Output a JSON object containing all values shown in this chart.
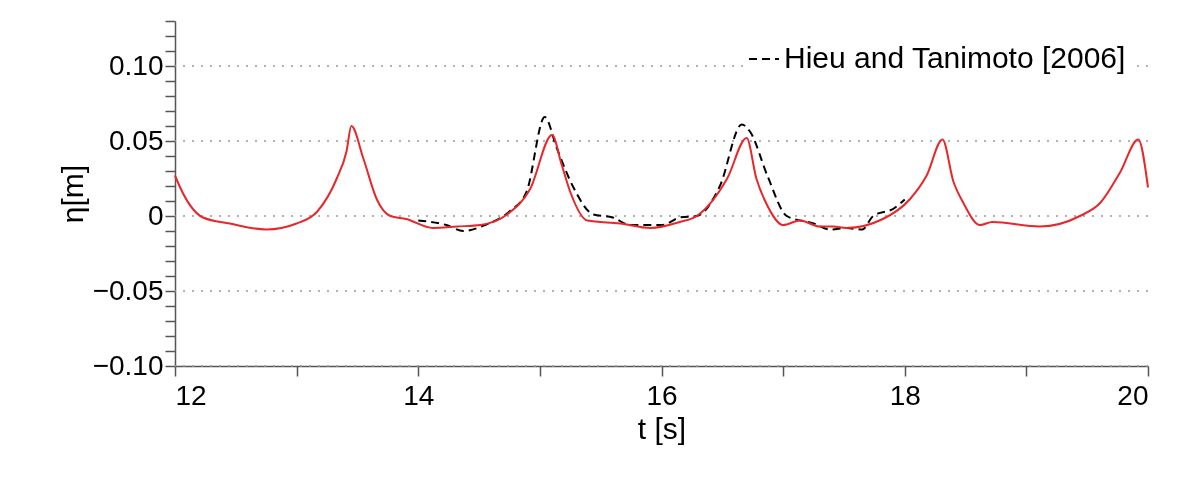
{
  "chart_data": {
    "type": "line",
    "xlabel": "t [s]",
    "ylabel": "η[m]",
    "xlim": [
      12,
      20
    ],
    "ylim": [
      -0.1,
      0.13
    ],
    "xticks": [
      12,
      {
        "value": 13,
        "label": null
      },
      14,
      {
        "value": 15,
        "label": null
      },
      16,
      {
        "value": 17,
        "label": null
      },
      18,
      {
        "value": 19,
        "label": null
      },
      20
    ],
    "yticks": [
      {
        "value": -0.1,
        "label": "−0.10"
      },
      {
        "value": -0.09,
        "label": null
      },
      {
        "value": -0.08,
        "label": null
      },
      {
        "value": -0.07,
        "label": null
      },
      {
        "value": -0.06,
        "label": null
      },
      {
        "value": -0.05,
        "label": "−0.05"
      },
      {
        "value": -0.04,
        "label": null
      },
      {
        "value": -0.03,
        "label": null
      },
      {
        "value": -0.02,
        "label": null
      },
      {
        "value": -0.01,
        "label": null
      },
      0,
      {
        "value": 0.01,
        "label": null
      },
      {
        "value": 0.02,
        "label": null
      },
      {
        "value": 0.03,
        "label": null
      },
      {
        "value": 0.04,
        "label": null
      },
      {
        "value": 0.05,
        "label": "0.05"
      },
      {
        "value": 0.06,
        "label": null
      },
      {
        "value": 0.07,
        "label": null
      },
      {
        "value": 0.08,
        "label": null
      },
      {
        "value": 0.09,
        "label": null
      },
      {
        "value": 0.1,
        "label": "0.10"
      },
      {
        "value": 0.11,
        "label": null
      },
      {
        "value": 0.12,
        "label": null
      },
      {
        "value": 0.13,
        "label": null
      }
    ],
    "grid": "y",
    "legend": "top right",
    "series": [
      {
        "name": "Hieu and Tanimoto [2006]",
        "color": "#000000",
        "line_style": "dashed",
        "x": [
          14.0,
          14.23,
          14.37,
          14.55,
          14.75,
          14.89,
          15.04,
          15.14,
          15.27,
          15.44,
          15.6,
          15.74,
          16.01,
          16.15,
          16.29,
          16.48,
          16.66,
          16.73,
          16.87,
          17.03,
          17.25,
          17.39,
          17.52,
          17.65,
          17.74,
          17.91,
          18.0
        ],
        "values": [
          -0.003,
          -0.006,
          -0.01,
          -0.006,
          0.003,
          0.016,
          0.066,
          0.045,
          0.02,
          0.001,
          -0.001,
          -0.006,
          -0.006,
          -0.001,
          0.0,
          0.02,
          0.061,
          0.056,
          0.027,
          0.0,
          -0.005,
          -0.009,
          -0.008,
          -0.009,
          0.0,
          0.005,
          0.011
        ]
      },
      {
        "color": "#e8272a",
        "line_style": "solid",
        "x": [
          12.0,
          12.01,
          12.23,
          12.45,
          12.75,
          13.0,
          13.17,
          13.33,
          13.41,
          13.45,
          13.55,
          13.66,
          13.77,
          13.9,
          14.12,
          14.32,
          14.51,
          14.73,
          14.92,
          15.1,
          15.18,
          15.25,
          15.39,
          15.66,
          15.91,
          16.15,
          16.29,
          16.54,
          16.7,
          16.78,
          16.87,
          17.0,
          17.14,
          17.3,
          17.41,
          17.52,
          17.82,
          18.04,
          18.18,
          18.31,
          18.4,
          18.48,
          18.62,
          18.72,
          19.11,
          19.44,
          19.61,
          19.77,
          19.92,
          20.0
        ],
        "values": [
          0.027,
          0.025,
          -0.001,
          -0.005,
          -0.009,
          -0.005,
          0.003,
          0.025,
          0.043,
          0.06,
          0.038,
          0.011,
          0.0,
          -0.002,
          -0.008,
          -0.007,
          -0.006,
          0.001,
          0.018,
          0.054,
          0.034,
          0.016,
          -0.003,
          -0.005,
          -0.008,
          -0.004,
          0.0,
          0.025,
          0.052,
          0.025,
          0.007,
          -0.006,
          -0.003,
          -0.007,
          -0.007,
          -0.008,
          -0.002,
          0.011,
          0.027,
          0.051,
          0.023,
          0.009,
          -0.006,
          -0.004,
          -0.007,
          0.0,
          0.009,
          0.029,
          0.051,
          0.019
        ]
      }
    ]
  }
}
